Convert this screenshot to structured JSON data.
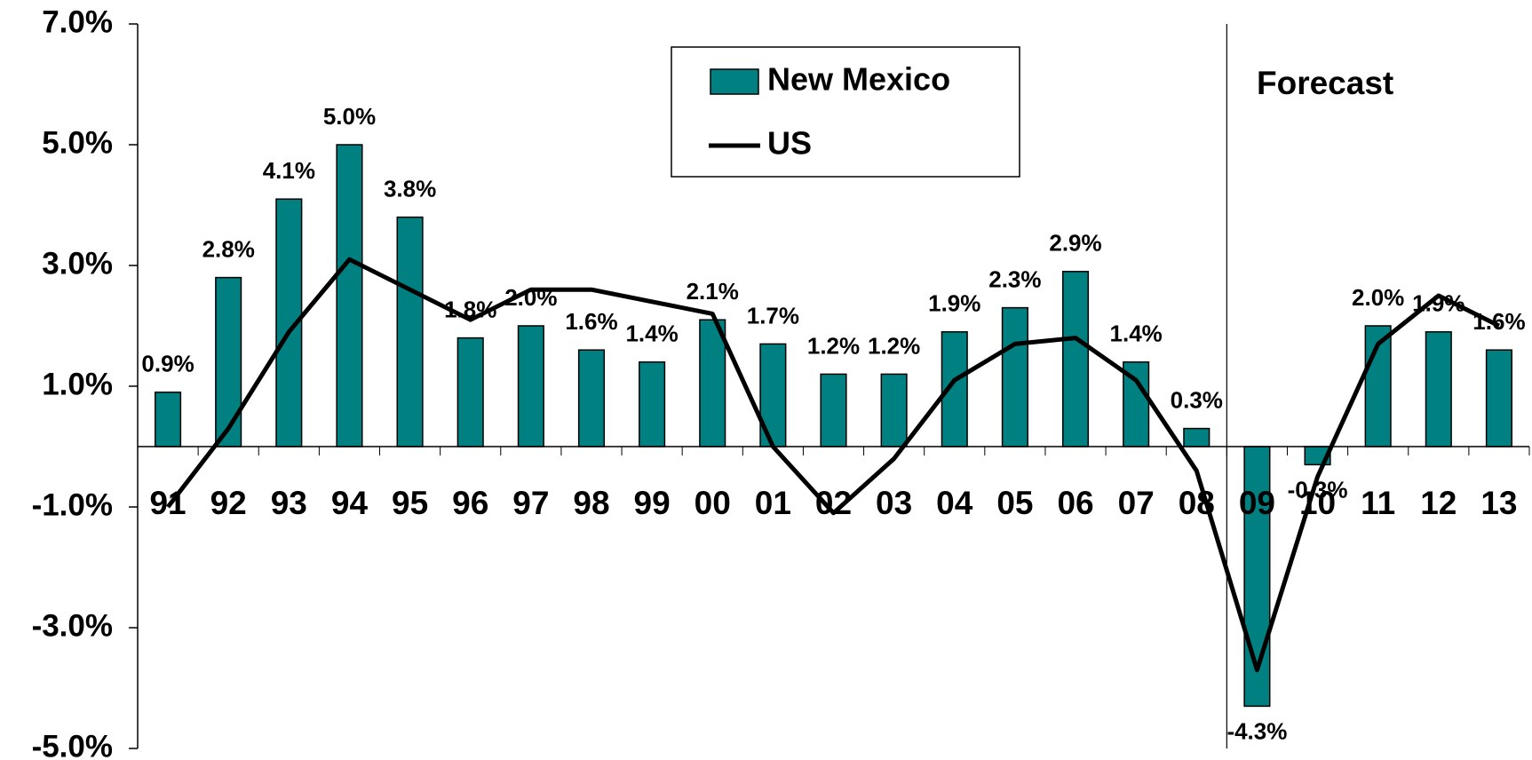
{
  "chart_data": {
    "type": "bar",
    "categories": [
      "91",
      "92",
      "93",
      "94",
      "95",
      "96",
      "97",
      "98",
      "99",
      "00",
      "01",
      "02",
      "03",
      "04",
      "05",
      "06",
      "07",
      "08",
      "09",
      "10",
      "11",
      "12",
      "13"
    ],
    "series": [
      {
        "name": "New Mexico",
        "type": "bar",
        "color": "#008080",
        "values": [
          0.9,
          2.8,
          4.1,
          5.0,
          3.8,
          1.8,
          2.0,
          1.6,
          1.4,
          2.1,
          1.7,
          1.2,
          1.2,
          1.9,
          2.3,
          2.9,
          1.4,
          0.3,
          -4.3,
          -0.3,
          2.0,
          1.9,
          1.6
        ],
        "value_labels": [
          "0.9%",
          "2.8%",
          "4.1%",
          "5.0%",
          "3.8%",
          "1.8%",
          "2.0%",
          "1.6%",
          "1.4%",
          "2.1%",
          "1.7%",
          "1.2%",
          "1.2%",
          "1.9%",
          "2.3%",
          "2.9%",
          "1.4%",
          "0.3%",
          "-4.3%",
          "-0.3%",
          "2.0%",
          "1.9%",
          "1.6%"
        ]
      },
      {
        "name": "US",
        "type": "line",
        "color": "#000000",
        "values": [
          -1.0,
          0.3,
          1.9,
          3.1,
          2.6,
          2.1,
          2.6,
          2.6,
          2.4,
          2.2,
          0.0,
          -1.1,
          -0.2,
          1.1,
          1.7,
          1.8,
          1.1,
          -0.4,
          -3.7,
          -0.5,
          1.7,
          2.5,
          2.0
        ]
      }
    ],
    "annotation": "Forecast",
    "ylim": [
      -5,
      7
    ],
    "yticks": [
      {
        "value": -5,
        "label": "-5.0%"
      },
      {
        "value": -3,
        "label": "-3.0%"
      },
      {
        "value": -1,
        "label": "-1.0%"
      },
      {
        "value": 1,
        "label": "1.0%"
      },
      {
        "value": 3,
        "label": "3.0%"
      },
      {
        "value": 5,
        "label": "5.0%"
      },
      {
        "value": 7,
        "label": "7.0%"
      }
    ],
    "grid": false
  }
}
